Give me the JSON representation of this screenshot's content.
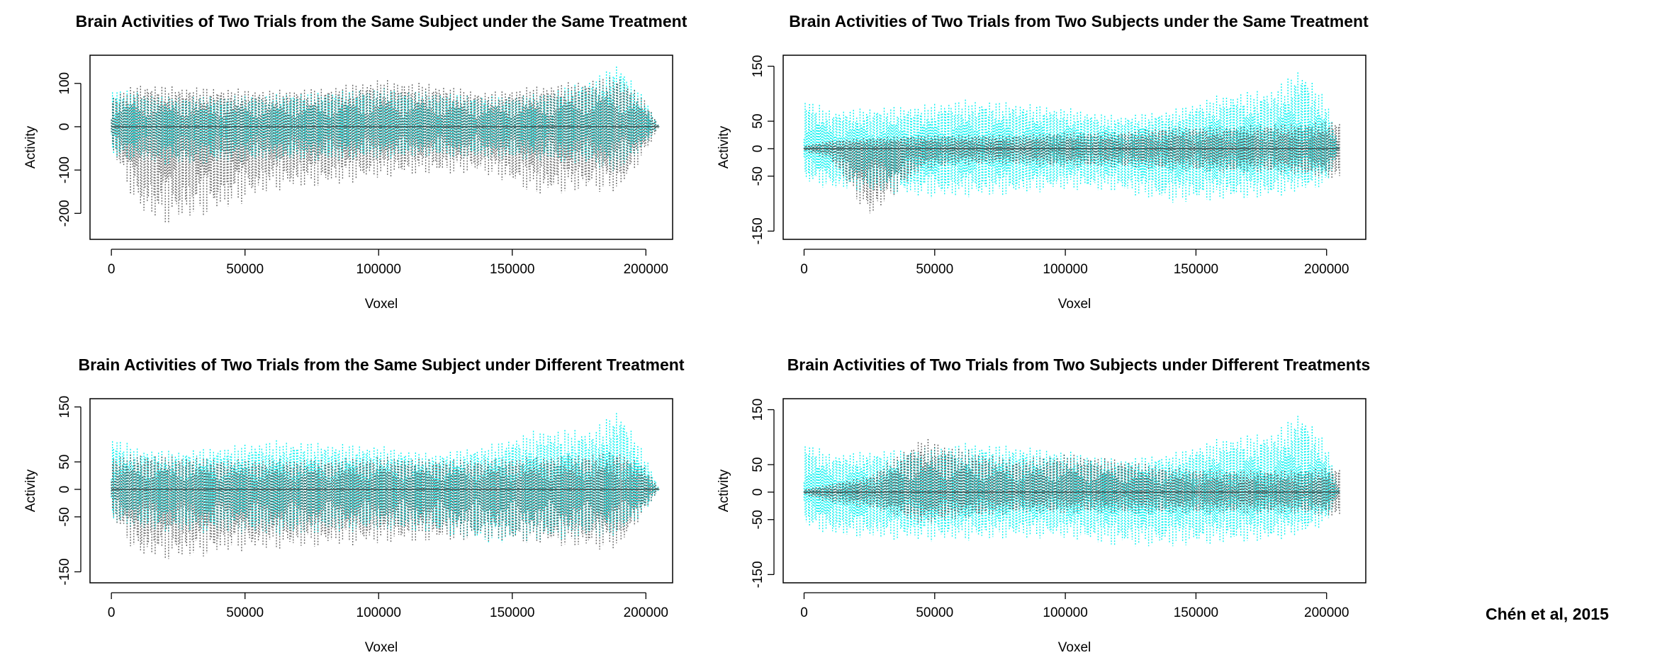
{
  "credit": "Chén et al, 2015",
  "colors": {
    "trial_a": "#00f0f0",
    "trial_b": "#333333",
    "frame": "#000000"
  },
  "chart_data": [
    {
      "type": "line",
      "title": "Brain Activities of Two Trials from the Same Subject under the Same Treatment",
      "xlabel": "Voxel",
      "ylabel": "Activity",
      "xlim": [
        -8000,
        210000
      ],
      "ylim": [
        -260,
        165
      ],
      "xticks": [
        0,
        50000,
        100000,
        150000,
        200000
      ],
      "xtick_labels": [
        "0",
        "50000",
        "100000",
        "150000",
        "200000"
      ],
      "yticks": [
        -200,
        -100,
        0,
        100
      ],
      "ytick_labels": [
        "-200",
        "-100",
        "0",
        "100"
      ],
      "grid": false,
      "series": [
        {
          "color": "cyan",
          "line_style": "dotted",
          "x": [
            0,
            10000,
            20000,
            40000,
            60000,
            80000,
            100000,
            120000,
            140000,
            160000,
            180000,
            190000,
            200000,
            205000
          ],
          "max": [
            90,
            80,
            70,
            70,
            75,
            80,
            90,
            80,
            70,
            75,
            110,
            150,
            60,
            0
          ],
          "min": [
            -70,
            -80,
            -90,
            -85,
            -80,
            -80,
            -75,
            -70,
            -75,
            -80,
            -90,
            -110,
            -40,
            0
          ]
        },
        {
          "color": "black",
          "line_style": "dotted",
          "x": [
            0,
            10000,
            20000,
            40000,
            60000,
            80000,
            100000,
            120000,
            140000,
            160000,
            180000,
            190000,
            200000,
            205000
          ],
          "max": [
            70,
            100,
            95,
            90,
            85,
            90,
            110,
            100,
            80,
            95,
            110,
            120,
            60,
            0
          ],
          "min": [
            -50,
            -200,
            -230,
            -200,
            -150,
            -140,
            -120,
            -110,
            -110,
            -160,
            -150,
            -155,
            -60,
            0
          ]
        }
      ]
    },
    {
      "type": "line",
      "title": "Brain Activities of Two Trials from Two Subjects under the Same Treatment",
      "xlabel": "Voxel",
      "ylabel": "Activity",
      "xlim": [
        -8000,
        215000
      ],
      "ylim": [
        -165,
        170
      ],
      "xticks": [
        0,
        50000,
        100000,
        150000,
        200000
      ],
      "xtick_labels": [
        "0",
        "50000",
        "100000",
        "150000",
        "200000"
      ],
      "yticks": [
        -150,
        -50,
        0,
        50,
        150
      ],
      "ytick_labels": [
        "-150",
        "-50",
        "0",
        "50",
        "150"
      ],
      "grid": false,
      "series": [
        {
          "color": "cyan",
          "line_style": "dotted",
          "x": [
            0,
            10000,
            25000,
            45000,
            60000,
            80000,
            100000,
            120000,
            140000,
            160000,
            180000,
            190000,
            200000,
            205000
          ],
          "max": [
            95,
            70,
            75,
            80,
            90,
            85,
            75,
            60,
            70,
            100,
            110,
            150,
            90,
            0
          ],
          "min": [
            -60,
            -75,
            -80,
            -90,
            -90,
            -85,
            -75,
            -80,
            -100,
            -95,
            -90,
            -80,
            -70,
            0
          ]
        },
        {
          "color": "black",
          "line_style": "dotted",
          "x": [
            0,
            10000,
            25000,
            45000,
            60000,
            80000,
            100000,
            120000,
            140000,
            160000,
            180000,
            190000,
            200000,
            205000
          ],
          "max": [
            5,
            15,
            20,
            25,
            25,
            25,
            30,
            30,
            40,
            40,
            45,
            45,
            50,
            50
          ],
          "min": [
            -5,
            -20,
            -130,
            -40,
            -30,
            -30,
            -35,
            -35,
            -40,
            -45,
            -45,
            -50,
            -55,
            -55
          ]
        }
      ]
    },
    {
      "type": "line",
      "title": "Brain Activities of Two Trials from the Same Subject under Different Treatment",
      "xlabel": "Voxel",
      "ylabel": "Activity",
      "xlim": [
        -8000,
        210000
      ],
      "ylim": [
        -170,
        165
      ],
      "xticks": [
        0,
        50000,
        100000,
        150000,
        200000
      ],
      "xtick_labels": [
        "0",
        "50000",
        "100000",
        "150000",
        "200000"
      ],
      "yticks": [
        -150,
        -50,
        0,
        50,
        150
      ],
      "ytick_labels": [
        "-150",
        "-50",
        "0",
        "50",
        "150"
      ],
      "grid": false,
      "series": [
        {
          "color": "cyan",
          "line_style": "dotted",
          "x": [
            0,
            10000,
            25000,
            45000,
            60000,
            80000,
            100000,
            120000,
            140000,
            160000,
            180000,
            190000,
            200000,
            205000
          ],
          "max": [
            100,
            75,
            70,
            80,
            90,
            85,
            80,
            65,
            80,
            110,
            110,
            150,
            60,
            0
          ],
          "min": [
            -60,
            -75,
            -80,
            -80,
            -85,
            -80,
            -75,
            -80,
            -100,
            -95,
            -90,
            -85,
            -40,
            0
          ]
        },
        {
          "color": "black",
          "line_style": "dotted",
          "x": [
            0,
            10000,
            25000,
            45000,
            60000,
            80000,
            100000,
            120000,
            140000,
            160000,
            180000,
            190000,
            200000,
            205000
          ],
          "max": [
            60,
            65,
            60,
            55,
            55,
            55,
            60,
            55,
            55,
            60,
            65,
            70,
            40,
            0
          ],
          "min": [
            -50,
            -125,
            -130,
            -115,
            -110,
            -105,
            -100,
            -95,
            -95,
            -100,
            -110,
            -110,
            -40,
            0
          ]
        }
      ]
    },
    {
      "type": "line",
      "title": "Brain Activities of Two Trials from Two Subjects under Different Treatments",
      "xlabel": "Voxel",
      "ylabel": "Activity",
      "xlim": [
        -8000,
        215000
      ],
      "ylim": [
        -165,
        170
      ],
      "xticks": [
        0,
        50000,
        100000,
        150000,
        200000
      ],
      "xtick_labels": [
        "0",
        "50000",
        "100000",
        "150000",
        "200000"
      ],
      "yticks": [
        -150,
        -50,
        0,
        50,
        150
      ],
      "ytick_labels": [
        "-150",
        "-50",
        "0",
        "50",
        "150"
      ],
      "grid": false,
      "series": [
        {
          "color": "cyan",
          "line_style": "dotted",
          "x": [
            0,
            10000,
            25000,
            45000,
            60000,
            80000,
            100000,
            120000,
            140000,
            160000,
            180000,
            190000,
            200000,
            205000
          ],
          "max": [
            95,
            70,
            75,
            80,
            90,
            85,
            75,
            60,
            70,
            100,
            110,
            150,
            90,
            0
          ],
          "min": [
            -60,
            -80,
            -85,
            -90,
            -90,
            -85,
            -85,
            -100,
            -100,
            -95,
            -90,
            -80,
            -60,
            0
          ]
        },
        {
          "color": "black",
          "line_style": "dotted",
          "x": [
            0,
            10000,
            25000,
            45000,
            60000,
            80000,
            100000,
            120000,
            140000,
            160000,
            180000,
            190000,
            200000,
            205000
          ],
          "max": [
            5,
            15,
            30,
            100,
            80,
            60,
            70,
            60,
            45,
            40,
            40,
            40,
            45,
            45
          ],
          "min": [
            -5,
            -20,
            -30,
            -60,
            -50,
            -40,
            -40,
            -40,
            -40,
            -40,
            -40,
            -40,
            -45,
            -45
          ]
        }
      ]
    }
  ]
}
